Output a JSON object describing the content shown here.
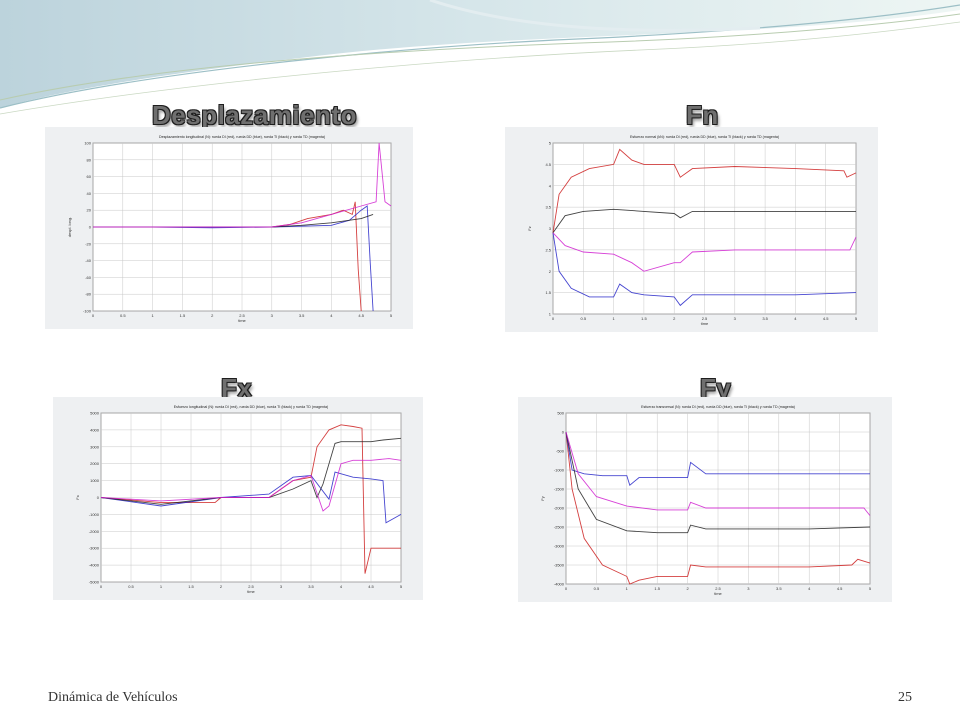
{
  "slide": {
    "footer_left": "Dinámica de Vehículos",
    "page_number": "25",
    "colors": {
      "red": "#cc1f1f",
      "blue": "#2626c8",
      "black": "#222222",
      "magenta": "#d020d0"
    }
  },
  "panels": [
    {
      "heading": "Desplazamiento",
      "chart_data": {
        "type": "line",
        "title": "Desplazamiento longitudinal (N): rueda DI (red), rueda DD (blue), rueda TI (black) y rueda TD (magenta)",
        "xlabel": "time",
        "ylabel": "despl. long.",
        "xlim": [
          0,
          5
        ],
        "ylim": [
          -100,
          100
        ],
        "xticks": [
          "0",
          "0.5",
          "1",
          "1.5",
          "2",
          "2.5",
          "3",
          "3.5",
          "4",
          "4.5",
          "5"
        ],
        "yticks": [
          "100",
          "80",
          "60",
          "40",
          "20",
          "0",
          "-20",
          "-40",
          "-60",
          "-80",
          "-100"
        ],
        "grid": true,
        "series": [
          {
            "name": "rueda DI",
            "color": "red",
            "x": [
              0,
              1,
              2,
              3,
              3.3,
              3.6,
              4,
              4.2,
              4.35,
              4.4,
              4.45,
              4.5
            ],
            "y": [
              0,
              0,
              0,
              0,
              3,
              10,
              15,
              20,
              15,
              30,
              -50,
              -100
            ]
          },
          {
            "name": "rueda DD",
            "color": "blue",
            "x": [
              0,
              1,
              2,
              3,
              3.5,
              4,
              4.3,
              4.5,
              4.6,
              4.65,
              4.7
            ],
            "y": [
              0,
              0,
              -1,
              0,
              1,
              2,
              8,
              20,
              25,
              -40,
              -100
            ]
          },
          {
            "name": "rueda TI",
            "color": "black",
            "x": [
              0,
              1,
              2,
              3,
              3.5,
              4,
              4.5,
              4.7
            ],
            "y": [
              0,
              0,
              0,
              0,
              2,
              5,
              10,
              15
            ]
          },
          {
            "name": "rueda TD",
            "color": "magenta",
            "x": [
              0,
              1,
              2,
              3,
              3.5,
              4,
              4.5,
              4.75,
              4.8,
              4.9,
              5
            ],
            "y": [
              0,
              0,
              0,
              0,
              5,
              15,
              25,
              30,
              100,
              30,
              25
            ]
          }
        ]
      }
    },
    {
      "heading": "Fn",
      "chart_data": {
        "type": "line",
        "title": "Esfuerzo normal (kN): rueda DI (red), rueda DD (blue), rueda TI (black) y rueda TD (magenta)",
        "xlabel": "time",
        "ylabel": "Fz",
        "xlim": [
          0,
          5
        ],
        "ylim": [
          1,
          5
        ],
        "xticks": [
          "0",
          "0.5",
          "1",
          "1.5",
          "2",
          "2.5",
          "3",
          "3.5",
          "4",
          "4.5",
          "5"
        ],
        "yticks": [
          "5",
          "4.5",
          "4",
          "3.5",
          "3",
          "2.5",
          "2",
          "1.5",
          "1"
        ],
        "grid": true,
        "series": [
          {
            "name": "rueda DI",
            "color": "red",
            "x": [
              0,
              0.1,
              0.3,
              0.6,
              1,
              1.1,
              1.3,
              1.5,
              2,
              2.1,
              2.3,
              3,
              4,
              4.8,
              4.85,
              5
            ],
            "y": [
              2.9,
              3.8,
              4.2,
              4.4,
              4.5,
              4.85,
              4.6,
              4.5,
              4.5,
              4.2,
              4.4,
              4.45,
              4.4,
              4.35,
              4.2,
              4.3
            ]
          },
          {
            "name": "rueda DD",
            "color": "blue",
            "x": [
              0,
              0.1,
              0.3,
              0.6,
              1,
              1.1,
              1.3,
              1.5,
              2,
              2.1,
              2.3,
              3,
              4,
              5
            ],
            "y": [
              2.9,
              2.0,
              1.6,
              1.4,
              1.4,
              1.7,
              1.5,
              1.45,
              1.4,
              1.2,
              1.45,
              1.45,
              1.45,
              1.5
            ]
          },
          {
            "name": "rueda TI",
            "color": "black",
            "x": [
              0,
              0.2,
              0.5,
              1,
              1.5,
              2,
              2.1,
              2.3,
              3,
              4,
              5
            ],
            "y": [
              2.9,
              3.3,
              3.4,
              3.45,
              3.4,
              3.35,
              3.25,
              3.4,
              3.4,
              3.4,
              3.4
            ]
          },
          {
            "name": "rueda TD",
            "color": "magenta",
            "x": [
              0,
              0.2,
              0.5,
              1,
              1.3,
              1.5,
              2,
              2.1,
              2.3,
              3,
              4,
              4.9,
              5
            ],
            "y": [
              2.9,
              2.6,
              2.45,
              2.4,
              2.2,
              2.0,
              2.2,
              2.2,
              2.45,
              2.5,
              2.5,
              2.5,
              2.8
            ]
          }
        ]
      }
    },
    {
      "heading": "Fx",
      "chart_data": {
        "type": "line",
        "title": "Esfuerzo longitudinal (N): rueda DI (red), rueda DD (blue), rueda TI (black) y rueda TD (magenta)",
        "xlabel": "time",
        "ylabel": "Fx",
        "xlim": [
          0,
          5
        ],
        "ylim": [
          -5000,
          5000
        ],
        "xticks": [
          "0",
          "0.5",
          "1",
          "1.5",
          "2",
          "2.5",
          "3",
          "3.5",
          "4",
          "4.5",
          "5"
        ],
        "yticks": [
          "5000",
          "4000",
          "3000",
          "2000",
          "1000",
          "0",
          "-1000",
          "-2000",
          "-3000",
          "-4000",
          "-5000"
        ],
        "grid": true,
        "series": [
          {
            "name": "rueda DI",
            "color": "red",
            "x": [
              0,
              1,
              1.9,
              2,
              2.8,
              3.2,
              3.5,
              3.6,
              3.8,
              4,
              4.2,
              4.35,
              4.4,
              4.5,
              4.9,
              5
            ],
            "y": [
              0,
              -300,
              -300,
              0,
              0,
              1000,
              1200,
              3000,
              4000,
              4300,
              4200,
              4100,
              -4500,
              -3000,
              -3000,
              -3000
            ]
          },
          {
            "name": "rueda DD",
            "color": "blue",
            "x": [
              0,
              1,
              2,
              2.8,
              3.2,
              3.5,
              3.8,
              3.9,
              4.2,
              4.5,
              4.7,
              4.75,
              5
            ],
            "y": [
              0,
              -500,
              0,
              200,
              1200,
              1300,
              -100,
              1500,
              1200,
              1100,
              1000,
              -1500,
              -1000
            ]
          },
          {
            "name": "rueda TI",
            "color": "black",
            "x": [
              0,
              1,
              2,
              2.8,
              3.2,
              3.5,
              3.6,
              3.7,
              3.9,
              4,
              4.5,
              4.7,
              5
            ],
            "y": [
              0,
              -400,
              0,
              0,
              500,
              1000,
              0,
              800,
              3200,
              3300,
              3300,
              3400,
              3500
            ]
          },
          {
            "name": "rueda TD",
            "color": "magenta",
            "x": [
              0,
              1,
              2,
              2.8,
              3.2,
              3.5,
              3.7,
              3.8,
              4,
              4.2,
              4.5,
              4.8,
              5
            ],
            "y": [
              0,
              -200,
              0,
              0,
              1000,
              1300,
              -800,
              -500,
              2000,
              2200,
              2200,
              2300,
              2200
            ]
          }
        ]
      }
    },
    {
      "heading": "Fy",
      "chart_data": {
        "type": "line",
        "title": "Esfuerzo transversal (N): rueda DI (red), rueda DD (blue), rueda TI (black) y rueda TD (magenta)",
        "xlabel": "time",
        "ylabel": "Fy",
        "xlim": [
          0,
          5
        ],
        "ylim": [
          -4000,
          500
        ],
        "xticks": [
          "0",
          "0.5",
          "1",
          "1.5",
          "2",
          "2.5",
          "3",
          "3.5",
          "4",
          "4.5",
          "5"
        ],
        "yticks": [
          "500",
          "0",
          "-500",
          "-1000",
          "-1500",
          "-2000",
          "-2500",
          "-3000",
          "-3500",
          "-4000"
        ],
        "grid": true,
        "series": [
          {
            "name": "rueda DI",
            "color": "red",
            "x": [
              0,
              0.1,
              0.3,
              0.6,
              1,
              1.05,
              1.2,
              1.5,
              2,
              2.05,
              2.3,
              3,
              4,
              4.7,
              4.8,
              5
            ],
            "y": [
              0,
              -1500,
              -2800,
              -3500,
              -3800,
              -4200,
              -3900,
              -3800,
              -3800,
              -3500,
              -3550,
              -3550,
              -3550,
              -3500,
              -3350,
              -3450
            ]
          },
          {
            "name": "rueda DD",
            "color": "blue",
            "x": [
              0,
              0.1,
              0.3,
              0.6,
              1,
              1.05,
              1.2,
              1.5,
              2,
              2.05,
              2.3,
              3,
              4,
              5
            ],
            "y": [
              0,
              -1000,
              -1100,
              -1150,
              -1150,
              -1400,
              -1200,
              -1200,
              -1200,
              -800,
              -1100,
              -1100,
              -1100,
              -1100
            ]
          },
          {
            "name": "rueda TI",
            "color": "black",
            "x": [
              0,
              0.2,
              0.5,
              1,
              1.5,
              2,
              2.05,
              2.3,
              3,
              4,
              5
            ],
            "y": [
              0,
              -1500,
              -2300,
              -2600,
              -2650,
              -2650,
              -2450,
              -2550,
              -2550,
              -2550,
              -2500
            ]
          },
          {
            "name": "rueda TD",
            "color": "magenta",
            "x": [
              0,
              0.2,
              0.5,
              1,
              1.5,
              2,
              2.05,
              2.3,
              3,
              4,
              4.9,
              5
            ],
            "y": [
              0,
              -1100,
              -1700,
              -1950,
              -2050,
              -2050,
              -1850,
              -2000,
              -2000,
              -2000,
              -2000,
              -2200
            ]
          }
        ]
      }
    }
  ]
}
